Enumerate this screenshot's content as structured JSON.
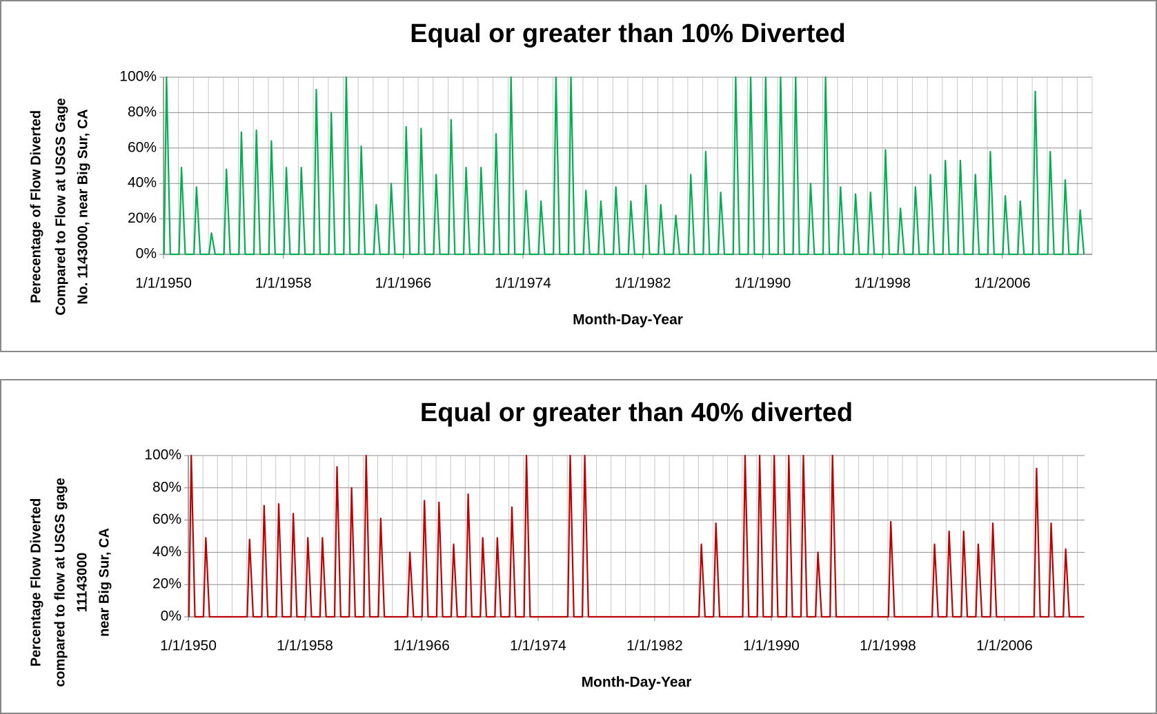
{
  "chart_data": [
    {
      "type": "line",
      "title": "Equal or greater than 10% Diverted",
      "x_label": "Month-Day-Year",
      "y_label": [
        "Perecentage of Flow Diverted",
        "Compared to Flow at USGS Gage",
        "No. 1143000, near Big Sur, CA"
      ],
      "xlim": [
        "1950-01-01",
        "2012-01-01"
      ],
      "ylim": [
        0,
        100
      ],
      "grid": true,
      "x_grid_step_years": 1,
      "xticks": [
        {
          "value": "1950-01-01",
          "label": "1/1/1950"
        },
        {
          "value": "1958-01-01",
          "label": "1/1/1958"
        },
        {
          "value": "1966-01-01",
          "label": "1/1/1966"
        },
        {
          "value": "1974-01-01",
          "label": "1/1/1974"
        },
        {
          "value": "1982-01-01",
          "label": "1/1/1982"
        },
        {
          "value": "1990-01-01",
          "label": "1/1/1990"
        },
        {
          "value": "1998-01-01",
          "label": "1/1/1998"
        },
        {
          "value": "2006-01-01",
          "label": "1/1/2006"
        }
      ],
      "yticks": [
        {
          "value": 0,
          "label": "0%"
        },
        {
          "value": 20,
          "label": "20%"
        },
        {
          "value": 40,
          "label": "40%"
        },
        {
          "value": 60,
          "label": "60%"
        },
        {
          "value": 80,
          "label": "80%"
        },
        {
          "value": 100,
          "label": "100%"
        }
      ],
      "x": [
        "1950-01-15",
        "1950-03-15",
        "1950-06-15",
        "1951-01-15",
        "1951-03-15",
        "1951-06-15",
        "1952-01-15",
        "1952-03-15",
        "1952-06-15",
        "1953-01-15",
        "1953-03-15",
        "1953-06-15",
        "1954-01-15",
        "1954-03-15",
        "1954-06-15",
        "1955-01-15",
        "1955-03-15",
        "1955-06-15",
        "1956-01-15",
        "1956-03-15",
        "1956-06-15",
        "1957-01-15",
        "1957-03-15",
        "1957-06-15",
        "1958-01-15",
        "1958-03-15",
        "1958-06-15",
        "1959-01-15",
        "1959-03-15",
        "1959-06-15",
        "1960-01-15",
        "1960-03-15",
        "1960-06-15",
        "1961-01-15",
        "1961-03-15",
        "1961-06-15",
        "1962-01-15",
        "1962-03-15",
        "1962-06-15",
        "1963-01-15",
        "1963-03-15",
        "1963-06-15",
        "1964-01-15",
        "1964-03-15",
        "1964-06-15",
        "1965-01-15",
        "1965-03-15",
        "1965-06-15",
        "1966-01-15",
        "1966-03-15",
        "1966-06-15",
        "1967-01-15",
        "1967-03-15",
        "1967-06-15",
        "1968-01-15",
        "1968-03-15",
        "1968-06-15",
        "1969-01-15",
        "1969-03-15",
        "1969-06-15",
        "1970-01-15",
        "1970-03-15",
        "1970-06-15",
        "1971-01-15",
        "1971-03-15",
        "1971-06-15",
        "1972-01-15",
        "1972-03-15",
        "1972-06-15",
        "1973-01-15",
        "1973-03-15",
        "1973-06-15",
        "1974-01-15",
        "1974-03-15",
        "1974-06-15",
        "1975-01-15",
        "1975-03-15",
        "1975-06-15",
        "1976-01-15",
        "1976-03-15",
        "1976-06-15",
        "1977-01-15",
        "1977-03-15",
        "1977-06-15",
        "1978-01-15",
        "1978-03-15",
        "1978-06-15",
        "1979-01-15",
        "1979-03-15",
        "1979-06-15",
        "1980-01-15",
        "1980-03-15",
        "1980-06-15",
        "1981-01-15",
        "1981-03-15",
        "1981-06-15",
        "1982-01-15",
        "1982-03-15",
        "1982-06-15",
        "1983-01-15",
        "1983-03-15",
        "1983-06-15",
        "1984-01-15",
        "1984-03-15",
        "1984-06-15",
        "1985-01-15",
        "1985-03-15",
        "1985-06-15",
        "1986-01-15",
        "1986-03-15",
        "1986-06-15",
        "1987-01-15",
        "1987-03-15",
        "1987-06-15",
        "1988-01-15",
        "1988-03-15",
        "1988-06-15",
        "1989-01-15",
        "1989-03-15",
        "1989-06-15",
        "1990-01-15",
        "1990-03-15",
        "1990-06-15",
        "1991-01-15",
        "1991-03-15",
        "1991-06-15",
        "1992-01-15",
        "1992-03-15",
        "1992-06-15",
        "1993-01-15",
        "1993-03-15",
        "1993-06-15",
        "1994-01-15",
        "1994-03-15",
        "1994-06-15",
        "1995-01-15",
        "1995-03-15",
        "1995-06-15",
        "1996-01-15",
        "1996-03-15",
        "1996-06-15",
        "1997-01-15",
        "1997-03-15",
        "1997-06-15",
        "1998-01-15",
        "1998-03-15",
        "1998-06-15",
        "1999-01-15",
        "1999-03-15",
        "1999-06-15",
        "2000-01-15",
        "2000-03-15",
        "2000-06-15",
        "2001-01-15",
        "2001-03-15",
        "2001-06-15",
        "2002-01-15",
        "2002-03-15",
        "2002-06-15",
        "2003-01-15",
        "2003-03-15",
        "2003-06-15",
        "2004-01-15",
        "2004-03-15",
        "2004-06-15",
        "2005-01-15",
        "2005-03-15",
        "2005-06-15",
        "2006-01-15",
        "2006-03-15",
        "2006-06-15",
        "2007-01-15",
        "2007-03-15",
        "2007-06-15",
        "2008-01-15",
        "2008-03-15",
        "2008-06-15",
        "2009-01-15",
        "2009-03-15",
        "2009-06-15",
        "2010-01-15",
        "2010-03-15",
        "2010-06-15",
        "2011-01-15",
        "2011-03-15",
        "2011-06-15"
      ],
      "series": [
        {
          "color": "#00b050",
          "values": [
            0,
            100,
            0,
            0,
            49,
            0,
            0,
            38,
            0,
            0,
            12,
            0,
            0,
            48,
            0,
            0,
            69,
            0,
            0,
            70,
            0,
            0,
            64,
            0,
            0,
            49,
            0,
            0,
            49,
            0,
            0,
            93,
            0,
            0,
            80,
            0,
            0,
            100,
            0,
            0,
            61,
            0,
            0,
            28,
            0,
            0,
            40,
            0,
            0,
            72,
            0,
            0,
            71,
            0,
            0,
            45,
            0,
            0,
            76,
            0,
            0,
            49,
            0,
            0,
            49,
            0,
            0,
            68,
            0,
            0,
            100,
            0,
            0,
            36,
            0,
            0,
            30,
            0,
            0,
            100,
            0,
            0,
            100,
            0,
            0,
            36,
            0,
            0,
            30,
            0,
            0,
            38,
            0,
            0,
            30,
            0,
            0,
            39,
            0,
            0,
            28,
            0,
            0,
            22,
            0,
            0,
            45,
            0,
            0,
            58,
            0,
            0,
            35,
            0,
            0,
            100,
            0,
            0,
            100,
            0,
            0,
            100,
            0,
            0,
            100,
            0,
            0,
            100,
            0,
            0,
            40,
            0,
            0,
            100,
            0,
            0,
            38,
            0,
            0,
            34,
            0,
            0,
            35,
            0,
            0,
            59,
            0,
            0,
            26,
            0,
            0,
            38,
            0,
            0,
            45,
            0,
            0,
            53,
            0,
            0,
            53,
            0,
            0,
            45,
            0,
            0,
            58,
            0,
            0,
            33,
            0,
            0,
            30,
            0,
            0,
            92,
            0,
            0,
            58,
            0,
            0,
            42,
            0,
            0,
            25,
            0
          ]
        }
      ]
    },
    {
      "type": "line",
      "title": "Equal or greater than 40% diverted",
      "x_label": "Month-Day-Year",
      "y_label": [
        "Percentage Flow Diverted",
        "compared to flow at USGS gage",
        "11143000",
        "near Big Sur, CA"
      ],
      "xlim": [
        "1950-01-01",
        "2011-07-01"
      ],
      "ylim": [
        0,
        100
      ],
      "grid": true,
      "x_grid_step_years": 1,
      "xticks": [
        {
          "value": "1950-01-01",
          "label": "1/1/1950"
        },
        {
          "value": "1958-01-01",
          "label": "1/1/1958"
        },
        {
          "value": "1966-01-01",
          "label": "1/1/1966"
        },
        {
          "value": "1974-01-01",
          "label": "1/1/1974"
        },
        {
          "value": "1982-01-01",
          "label": "1/1/1982"
        },
        {
          "value": "1990-01-01",
          "label": "1/1/1990"
        },
        {
          "value": "1998-01-01",
          "label": "1/1/1998"
        },
        {
          "value": "2006-01-01",
          "label": "1/1/2006"
        }
      ],
      "yticks": [
        {
          "value": 0,
          "label": "0%"
        },
        {
          "value": 20,
          "label": "20%"
        },
        {
          "value": 40,
          "label": "40%"
        },
        {
          "value": 60,
          "label": "60%"
        },
        {
          "value": 80,
          "label": "80%"
        },
        {
          "value": 100,
          "label": "100%"
        }
      ],
      "x": [
        "1950-01-15",
        "1950-03-15",
        "1950-06-15",
        "1951-01-15",
        "1951-03-15",
        "1951-06-15",
        "1952-01-15",
        "1952-03-15",
        "1952-06-15",
        "1953-01-15",
        "1953-03-15",
        "1953-06-15",
        "1954-01-15",
        "1954-03-15",
        "1954-06-15",
        "1955-01-15",
        "1955-03-15",
        "1955-06-15",
        "1956-01-15",
        "1956-03-15",
        "1956-06-15",
        "1957-01-15",
        "1957-03-15",
        "1957-06-15",
        "1958-01-15",
        "1958-03-15",
        "1958-06-15",
        "1959-01-15",
        "1959-03-15",
        "1959-06-15",
        "1960-01-15",
        "1960-03-15",
        "1960-06-15",
        "1961-01-15",
        "1961-03-15",
        "1961-06-15",
        "1962-01-15",
        "1962-03-15",
        "1962-06-15",
        "1963-01-15",
        "1963-03-15",
        "1963-06-15",
        "1964-01-15",
        "1964-03-15",
        "1964-06-15",
        "1965-01-15",
        "1965-03-15",
        "1965-06-15",
        "1966-01-15",
        "1966-03-15",
        "1966-06-15",
        "1967-01-15",
        "1967-03-15",
        "1967-06-15",
        "1968-01-15",
        "1968-03-15",
        "1968-06-15",
        "1969-01-15",
        "1969-03-15",
        "1969-06-15",
        "1970-01-15",
        "1970-03-15",
        "1970-06-15",
        "1971-01-15",
        "1971-03-15",
        "1971-06-15",
        "1972-01-15",
        "1972-03-15",
        "1972-06-15",
        "1973-01-15",
        "1973-03-15",
        "1973-06-15",
        "1974-01-15",
        "1974-03-15",
        "1974-06-15",
        "1975-01-15",
        "1975-03-15",
        "1975-06-15",
        "1976-01-15",
        "1976-03-15",
        "1976-06-15",
        "1977-01-15",
        "1977-03-15",
        "1977-06-15",
        "1978-01-15",
        "1978-03-15",
        "1978-06-15",
        "1979-01-15",
        "1979-03-15",
        "1979-06-15",
        "1980-01-15",
        "1980-03-15",
        "1980-06-15",
        "1981-01-15",
        "1981-03-15",
        "1981-06-15",
        "1982-01-15",
        "1982-03-15",
        "1982-06-15",
        "1983-01-15",
        "1983-03-15",
        "1983-06-15",
        "1984-01-15",
        "1984-03-15",
        "1984-06-15",
        "1985-01-15",
        "1985-03-15",
        "1985-06-15",
        "1986-01-15",
        "1986-03-15",
        "1986-06-15",
        "1987-01-15",
        "1987-03-15",
        "1987-06-15",
        "1988-01-15",
        "1988-03-15",
        "1988-06-15",
        "1989-01-15",
        "1989-03-15",
        "1989-06-15",
        "1990-01-15",
        "1990-03-15",
        "1990-06-15",
        "1991-01-15",
        "1991-03-15",
        "1991-06-15",
        "1992-01-15",
        "1992-03-15",
        "1992-06-15",
        "1993-01-15",
        "1993-03-15",
        "1993-06-15",
        "1994-01-15",
        "1994-03-15",
        "1994-06-15",
        "1995-01-15",
        "1995-03-15",
        "1995-06-15",
        "1996-01-15",
        "1996-03-15",
        "1996-06-15",
        "1997-01-15",
        "1997-03-15",
        "1997-06-15",
        "1998-01-15",
        "1998-03-15",
        "1998-06-15",
        "1999-01-15",
        "1999-03-15",
        "1999-06-15",
        "2000-01-15",
        "2000-03-15",
        "2000-06-15",
        "2001-01-15",
        "2001-03-15",
        "2001-06-15",
        "2002-01-15",
        "2002-03-15",
        "2002-06-15",
        "2003-01-15",
        "2003-03-15",
        "2003-06-15",
        "2004-01-15",
        "2004-03-15",
        "2004-06-15",
        "2005-01-15",
        "2005-03-15",
        "2005-06-15",
        "2006-01-15",
        "2006-03-15",
        "2006-06-15",
        "2007-01-15",
        "2007-03-15",
        "2007-06-15",
        "2008-01-15",
        "2008-03-15",
        "2008-06-15",
        "2009-01-15",
        "2009-03-15",
        "2009-06-15",
        "2010-01-15",
        "2010-03-15",
        "2010-06-15",
        "2011-01-15",
        "2011-03-15",
        "2011-06-15"
      ],
      "series": [
        {
          "color": "#c00000",
          "values": [
            0,
            100,
            0,
            0,
            49,
            0,
            0,
            0,
            0,
            0,
            0,
            0,
            0,
            48,
            0,
            0,
            69,
            0,
            0,
            70,
            0,
            0,
            64,
            0,
            0,
            49,
            0,
            0,
            49,
            0,
            0,
            93,
            0,
            0,
            80,
            0,
            0,
            100,
            0,
            0,
            61,
            0,
            0,
            0,
            0,
            0,
            40,
            0,
            0,
            72,
            0,
            0,
            71,
            0,
            0,
            45,
            0,
            0,
            76,
            0,
            0,
            49,
            0,
            0,
            49,
            0,
            0,
            68,
            0,
            0,
            100,
            0,
            0,
            0,
            0,
            0,
            0,
            0,
            0,
            100,
            0,
            0,
            100,
            0,
            0,
            0,
            0,
            0,
            0,
            0,
            0,
            0,
            0,
            0,
            0,
            0,
            0,
            0,
            0,
            0,
            0,
            0,
            0,
            0,
            0,
            0,
            45,
            0,
            0,
            58,
            0,
            0,
            0,
            0,
            0,
            100,
            0,
            0,
            100,
            0,
            0,
            100,
            0,
            0,
            100,
            0,
            0,
            100,
            0,
            0,
            40,
            0,
            0,
            100,
            0,
            0,
            0,
            0,
            0,
            0,
            0,
            0,
            0,
            0,
            0,
            59,
            0,
            0,
            0,
            0,
            0,
            0,
            0,
            0,
            45,
            0,
            0,
            53,
            0,
            0,
            53,
            0,
            0,
            45,
            0,
            0,
            58,
            0,
            0,
            0,
            0,
            0,
            0,
            0,
            0,
            92,
            0,
            0,
            58,
            0,
            0,
            42,
            0,
            0,
            0,
            0
          ]
        }
      ]
    }
  ]
}
